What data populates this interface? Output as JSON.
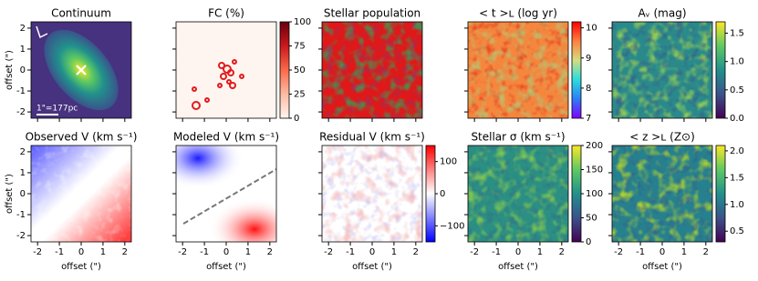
{
  "chart_data": [
    {
      "type": "image",
      "title": "Continuum",
      "colormap": "viridis",
      "xlim": [
        -2.3,
        2.3
      ],
      "ylim": [
        -2.3,
        2.3
      ],
      "xticks": [
        -2,
        -1,
        0,
        1,
        2
      ],
      "yticks": [
        -2,
        -1,
        0,
        1,
        2
      ],
      "xticklabels": false,
      "yticklabels": true,
      "ylabel": "offset (\")",
      "annotation": "1\"=177pc"
    },
    {
      "type": "image",
      "title": "FC (%)",
      "xlim": [
        -2.3,
        2.3
      ],
      "ylim": [
        -2.3,
        2.3
      ],
      "xticks": [
        -2,
        -1,
        0,
        1,
        2
      ],
      "yticks": [
        -2,
        -1,
        0,
        1,
        2
      ],
      "xticklabels": false,
      "yticklabels": false,
      "colorbar": {
        "colormap": "Reds",
        "lim": [
          0,
          100
        ],
        "ticks": [
          0,
          25,
          50,
          75,
          100
        ]
      }
    },
    {
      "type": "image",
      "title": "Stellar population",
      "xlim": [
        -2.3,
        2.3
      ],
      "ylim": [
        -2.3,
        2.3
      ],
      "xticks": [
        -2,
        -1,
        0,
        1,
        2
      ],
      "yticks": [
        -2,
        -1,
        0,
        1,
        2
      ],
      "xticklabels": false,
      "yticklabels": false
    },
    {
      "type": "image",
      "title": "< t >ʟ (log yr)",
      "xlim": [
        -2.3,
        2.3
      ],
      "ylim": [
        -2.3,
        2.3
      ],
      "xticks": [
        -2,
        -1,
        0,
        1,
        2
      ],
      "yticks": [
        -2,
        -1,
        0,
        1,
        2
      ],
      "xticklabels": false,
      "yticklabels": false,
      "colorbar": {
        "colormap": "rainbow",
        "lim": [
          7,
          10.2
        ],
        "ticks": [
          7,
          8,
          9,
          10
        ]
      }
    },
    {
      "type": "image",
      "title": "Aᵥ (mag)",
      "xlim": [
        -2.3,
        2.3
      ],
      "ylim": [
        -2.3,
        2.3
      ],
      "xticks": [
        -2,
        -1,
        0,
        1,
        2
      ],
      "yticks": [
        -2,
        -1,
        0,
        1,
        2
      ],
      "xticklabels": false,
      "yticklabels": false,
      "colorbar": {
        "colormap": "viridis",
        "lim": [
          0,
          1.7
        ],
        "ticks": [
          {
            "value": 0,
            "label": "0.0"
          },
          0.5,
          {
            "value": 1,
            "label": "1.0"
          },
          1.5
        ]
      }
    },
    {
      "type": "image",
      "title": "Observed V (km s⁻¹)",
      "xlim": [
        -2.3,
        2.3
      ],
      "ylim": [
        -2.3,
        2.3
      ],
      "xticks": [
        -2,
        -1,
        0,
        1,
        2
      ],
      "yticks": [
        -2,
        -1,
        0,
        1,
        2
      ],
      "xticklabels": true,
      "yticklabels": true,
      "xlabel": "offset (\")",
      "ylabel": "offset (\")"
    },
    {
      "type": "image",
      "title": "Modeled V (km s⁻¹)",
      "xlim": [
        -2.3,
        2.3
      ],
      "ylim": [
        -2.3,
        2.3
      ],
      "xticks": [
        -2,
        -1,
        0,
        1,
        2
      ],
      "yticks": [
        -2,
        -1,
        0,
        1,
        2
      ],
      "xticklabels": true,
      "yticklabels": false,
      "xlabel": "offset (\")"
    },
    {
      "type": "image",
      "title": "Residual V (km s⁻¹)",
      "xlim": [
        -2.3,
        2.3
      ],
      "ylim": [
        -2.3,
        2.3
      ],
      "xticks": [
        -2,
        -1,
        0,
        1,
        2
      ],
      "yticks": [
        -2,
        -1,
        0,
        1,
        2
      ],
      "xticklabels": true,
      "yticklabels": false,
      "xlabel": "offset (\")",
      "colorbar": {
        "colormap": "bwr",
        "lim": [
          -150,
          150
        ],
        "ticks": [
          {
            "value": -100,
            "label": "−100"
          },
          0,
          100
        ]
      }
    },
    {
      "type": "image",
      "title": "Stellar σ (km s⁻¹)",
      "xlim": [
        -2.3,
        2.3
      ],
      "ylim": [
        -2.3,
        2.3
      ],
      "xticks": [
        -2,
        -1,
        0,
        1,
        2
      ],
      "yticks": [
        -2,
        -1,
        0,
        1,
        2
      ],
      "xticklabels": true,
      "yticklabels": false,
      "xlabel": "offset (\")",
      "colorbar": {
        "colormap": "viridis",
        "lim": [
          0,
          200
        ],
        "ticks": [
          0,
          50,
          100,
          150,
          200
        ]
      }
    },
    {
      "type": "image",
      "title": "< z >ʟ (Z⊙)",
      "xlim": [
        -2.3,
        2.3
      ],
      "ylim": [
        -2.3,
        2.3
      ],
      "xticks": [
        -2,
        -1,
        0,
        1,
        2
      ],
      "yticks": [
        -2,
        -1,
        0,
        1,
        2
      ],
      "xticklabels": true,
      "yticklabels": false,
      "xlabel": "offset (\")",
      "colorbar": {
        "colormap": "viridis",
        "lim": [
          0.3,
          2.1
        ],
        "ticks": [
          0.5,
          {
            "value": 1,
            "label": "1.0"
          },
          1.5,
          {
            "value": 2,
            "label": "2.0"
          }
        ]
      }
    }
  ]
}
